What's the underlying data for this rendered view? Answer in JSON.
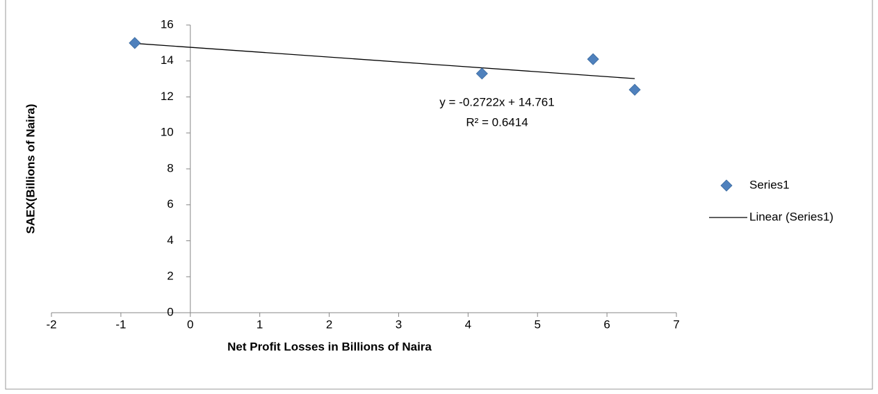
{
  "chart_data": {
    "type": "scatter",
    "x_label": "Net Profit Losses in Billions of Naira",
    "y_label": "SAEX(Billions of Naira)",
    "series": [
      {
        "name": "Series1",
        "color": "#4f81bd",
        "x": [
          -0.8,
          4.2,
          5.8,
          6.4
        ],
        "values": [
          15.0,
          13.3,
          14.1,
          12.4
        ]
      }
    ],
    "trendline": {
      "name": "Linear (Series1)",
      "color": "#000000",
      "slope": -0.2722,
      "intercept": 14.761,
      "label": "y = -0.2722x + 14.761",
      "r2_label": "R² = 0.6414"
    },
    "xlim": [
      -2,
      7
    ],
    "xticks": [
      -2,
      -1,
      0,
      1,
      2,
      3,
      4,
      5,
      6,
      7
    ],
    "ylim": [
      0,
      16
    ],
    "yticks": [
      0,
      2,
      4,
      6,
      8,
      10,
      12,
      14,
      16
    ],
    "grid": false,
    "legend": "right"
  }
}
